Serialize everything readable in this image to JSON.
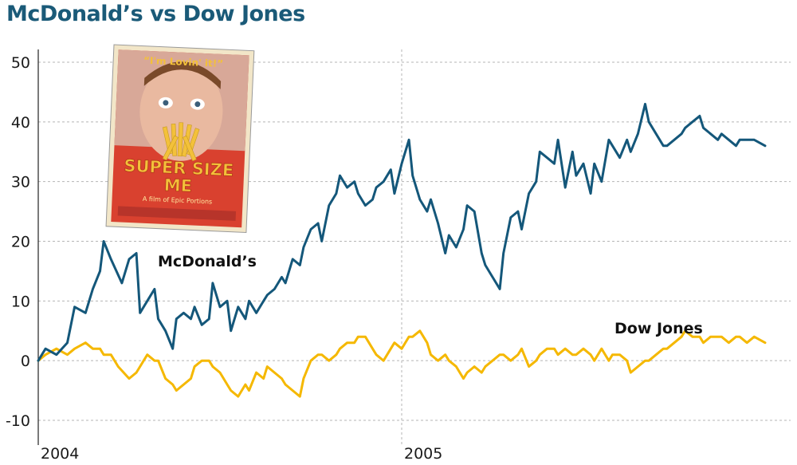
{
  "title": "McDonald’s vs Dow Jones",
  "poster": {
    "tagline": "“I'm Lovin' it!”",
    "title_line1": "SUPER SIZE",
    "title_line2": "ME",
    "credit": "A film of Epic Portions"
  },
  "colors": {
    "mcdonalds": "#14577a",
    "dow": "#f5b800",
    "title": "#1a5a78",
    "grid": "#b5b5b5"
  },
  "chart_data": {
    "type": "line",
    "title": "McDonald’s vs Dow Jones",
    "xlabel": "",
    "ylabel": "",
    "ylim": [
      -10,
      50
    ],
    "yticks": [
      "50",
      "40",
      "30",
      "20",
      "10",
      "0",
      "-10"
    ],
    "xticks": [
      "2004",
      "2005"
    ],
    "xlim": [
      0,
      2
    ],
    "grid": true,
    "series": [
      {
        "name": "McDonald’s",
        "x": [
          0,
          0.02,
          0.05,
          0.08,
          0.1,
          0.13,
          0.15,
          0.17,
          0.18,
          0.2,
          0.23,
          0.25,
          0.27,
          0.28,
          0.3,
          0.32,
          0.33,
          0.35,
          0.37,
          0.38,
          0.4,
          0.42,
          0.43,
          0.45,
          0.47,
          0.48,
          0.5,
          0.52,
          0.53,
          0.55,
          0.57,
          0.58,
          0.6,
          0.62,
          0.63,
          0.65,
          0.67,
          0.68,
          0.7,
          0.72,
          0.73,
          0.75,
          0.77,
          0.78,
          0.8,
          0.82,
          0.83,
          0.85,
          0.87,
          0.88,
          0.9,
          0.92,
          0.93,
          0.95,
          0.97,
          0.98,
          1.0,
          1.02,
          1.03,
          1.05,
          1.07,
          1.08,
          1.1,
          1.12,
          1.13,
          1.15,
          1.17,
          1.18,
          1.2,
          1.22,
          1.23,
          1.25,
          1.27,
          1.28,
          1.3,
          1.32,
          1.33,
          1.35,
          1.37,
          1.38,
          1.4,
          1.42,
          1.43,
          1.45,
          1.47,
          1.48,
          1.5,
          1.52,
          1.53,
          1.55,
          1.57,
          1.58,
          1.6,
          1.62,
          1.63,
          1.65,
          1.67,
          1.68,
          1.7,
          1.72,
          1.73,
          1.75,
          1.77,
          1.78,
          1.8,
          1.82,
          1.83,
          1.85,
          1.87,
          1.88,
          1.9,
          1.92,
          1.93,
          1.95,
          1.97,
          2.0
        ],
        "values": [
          0,
          2,
          1,
          3,
          9,
          8,
          12,
          15,
          20,
          17,
          13,
          17,
          18,
          8,
          10,
          12,
          7,
          5,
          2,
          7,
          8,
          7,
          9,
          6,
          7,
          13,
          9,
          10,
          5,
          9,
          7,
          10,
          8,
          10,
          11,
          12,
          14,
          13,
          17,
          16,
          19,
          22,
          23,
          20,
          26,
          28,
          31,
          29,
          30,
          28,
          26,
          27,
          29,
          30,
          32,
          28,
          33,
          37,
          31,
          27,
          25,
          27,
          23,
          18,
          21,
          19,
          22,
          26,
          25,
          18,
          16,
          14,
          12,
          18,
          24,
          25,
          22,
          28,
          30,
          35,
          34,
          33,
          37,
          29,
          35,
          31,
          33,
          28,
          33,
          30,
          37,
          36,
          34,
          37,
          35,
          38,
          43,
          40,
          38,
          36,
          36,
          37,
          38,
          39,
          40,
          41,
          39,
          38,
          37,
          38,
          37,
          36,
          37,
          37,
          37,
          36
        ]
      },
      {
        "name": "Dow Jones",
        "x": [
          0,
          0.02,
          0.05,
          0.08,
          0.1,
          0.13,
          0.15,
          0.17,
          0.18,
          0.2,
          0.22,
          0.25,
          0.27,
          0.28,
          0.3,
          0.32,
          0.33,
          0.35,
          0.37,
          0.38,
          0.4,
          0.42,
          0.43,
          0.45,
          0.47,
          0.48,
          0.5,
          0.52,
          0.53,
          0.55,
          0.57,
          0.58,
          0.6,
          0.62,
          0.63,
          0.65,
          0.67,
          0.68,
          0.7,
          0.72,
          0.73,
          0.75,
          0.77,
          0.78,
          0.8,
          0.82,
          0.83,
          0.85,
          0.87,
          0.88,
          0.9,
          0.92,
          0.93,
          0.95,
          0.97,
          0.98,
          1.0,
          1.02,
          1.03,
          1.05,
          1.07,
          1.08,
          1.1,
          1.12,
          1.13,
          1.15,
          1.17,
          1.18,
          1.2,
          1.22,
          1.23,
          1.25,
          1.27,
          1.28,
          1.3,
          1.32,
          1.33,
          1.35,
          1.37,
          1.38,
          1.4,
          1.42,
          1.43,
          1.45,
          1.47,
          1.48,
          1.5,
          1.52,
          1.53,
          1.55,
          1.57,
          1.58,
          1.6,
          1.62,
          1.63,
          1.65,
          1.67,
          1.68,
          1.7,
          1.72,
          1.73,
          1.75,
          1.77,
          1.78,
          1.8,
          1.82,
          1.83,
          1.85,
          1.87,
          1.88,
          1.9,
          1.92,
          1.93,
          1.95,
          1.97,
          2.0
        ],
        "values": [
          0,
          1,
          2,
          1,
          2,
          3,
          2,
          2,
          1,
          1,
          -1,
          -3,
          -2,
          -1,
          1,
          0,
          0,
          -3,
          -4,
          -5,
          -4,
          -3,
          -1,
          0,
          0,
          -1,
          -2,
          -4,
          -5,
          -6,
          -4,
          -5,
          -2,
          -3,
          -1,
          -2,
          -3,
          -4,
          -5,
          -6,
          -3,
          0,
          1,
          1,
          0,
          1,
          2,
          3,
          3,
          4,
          4,
          2,
          1,
          0,
          2,
          3,
          2,
          4,
          4,
          5,
          3,
          1,
          0,
          1,
          0,
          -1,
          -3,
          -2,
          -1,
          -2,
          -1,
          0,
          1,
          1,
          0,
          1,
          2,
          -1,
          0,
          1,
          2,
          2,
          1,
          2,
          1,
          1,
          2,
          1,
          0,
          2,
          0,
          1,
          1,
          0,
          -2,
          -1,
          0,
          0,
          1,
          2,
          2,
          3,
          4,
          5,
          4,
          4,
          3,
          4,
          4,
          4,
          3,
          4,
          4,
          3,
          4,
          3
        ]
      }
    ]
  }
}
